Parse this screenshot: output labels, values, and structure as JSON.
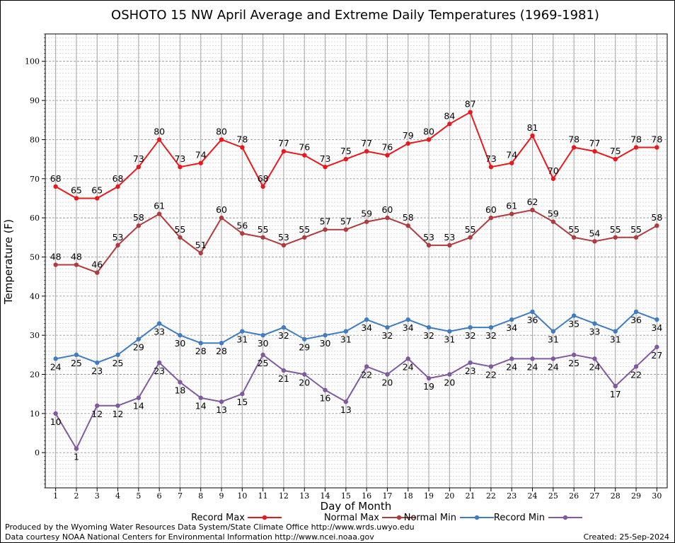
{
  "chart_data": {
    "type": "line",
    "title": "OSHOTO 15 NW April Average and Extreme Daily Temperatures (1969-1981)",
    "xlabel": "Day of Month",
    "ylabel": "Temperature (F)",
    "x": [
      1,
      2,
      3,
      4,
      5,
      6,
      7,
      8,
      9,
      10,
      11,
      12,
      13,
      14,
      15,
      16,
      17,
      18,
      19,
      20,
      21,
      22,
      23,
      24,
      25,
      26,
      27,
      28,
      29,
      30
    ],
    "xlim": [
      0.5,
      30.5
    ],
    "ylim": [
      -9,
      107
    ],
    "yticks": [
      0,
      10,
      20,
      30,
      40,
      50,
      60,
      70,
      80,
      90,
      100
    ],
    "grid": true,
    "legend_position": "bottom",
    "series": [
      {
        "name": "Record Max",
        "color": "#e8181e",
        "values": [
          68,
          65,
          65,
          68,
          73,
          80,
          73,
          74,
          80,
          78,
          68,
          77,
          76,
          73,
          75,
          77,
          76,
          79,
          80,
          84,
          87,
          73,
          74,
          81,
          70,
          78,
          77,
          75,
          78,
          78
        ]
      },
      {
        "name": "Normal Max",
        "color": "#b03a3e",
        "values": [
          48,
          48,
          46,
          53,
          58,
          61,
          55,
          51,
          60,
          56,
          55,
          53,
          55,
          57,
          57,
          59,
          60,
          58,
          53,
          53,
          55,
          60,
          61,
          62,
          59,
          55,
          54,
          55,
          55,
          58
        ]
      },
      {
        "name": "Normal Min",
        "color": "#3f7cc0",
        "values": [
          24,
          25,
          23,
          25,
          29,
          33,
          30,
          28,
          28,
          31,
          30,
          32,
          29,
          30,
          31,
          34,
          32,
          34,
          32,
          31,
          32,
          32,
          34,
          36,
          31,
          35,
          33,
          31,
          36,
          34
        ]
      },
      {
        "name": "Record Min",
        "color": "#7f5a9e",
        "values": [
          10,
          1,
          12,
          12,
          14,
          23,
          18,
          14,
          13,
          15,
          25,
          21,
          20,
          16,
          13,
          22,
          20,
          24,
          19,
          20,
          23,
          22,
          24,
          24,
          24,
          25,
          24,
          17,
          22,
          27
        ]
      }
    ]
  },
  "footer": {
    "credit_line1": "Produced by the Wyoming Water Resources Data System/State Climate Office http://www.wrds.uwyo.edu",
    "credit_line2": "Data courtesy NOAA National Centers for Environmental Information http://www.ncei.noaa.gov",
    "created": "Created:  25-Sep-2024"
  }
}
